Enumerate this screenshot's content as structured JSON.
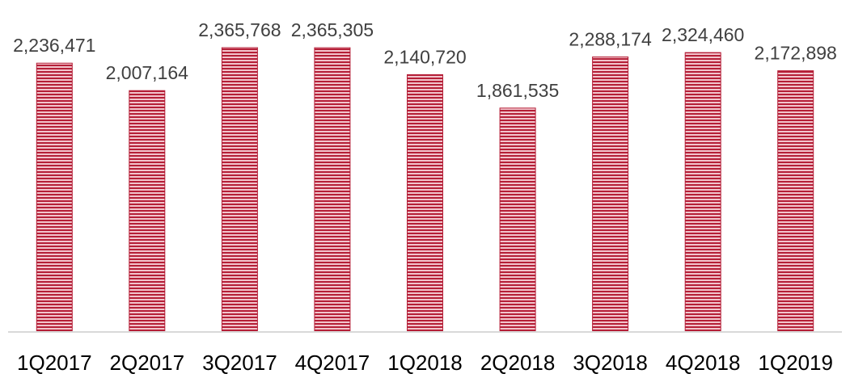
{
  "chart_data": {
    "type": "bar",
    "categories": [
      "1Q2017",
      "2Q2017",
      "3Q2017",
      "4Q2017",
      "1Q2018",
      "2Q2018",
      "3Q2018",
      "4Q2018",
      "1Q2019"
    ],
    "values": [
      2236471,
      2007164,
      2365768,
      2365305,
      2140720,
      1861535,
      2288174,
      2324460,
      2172898
    ],
    "data_labels": [
      "2,236,471",
      "2,007,164",
      "2,365,768",
      "2,365,305",
      "2,140,720",
      "1,861,535",
      "2,288,174",
      "2,324,460",
      "2,172,898"
    ],
    "title": "",
    "xlabel": "",
    "ylabel": "",
    "ylim": [
      0,
      2365768
    ],
    "grid": false,
    "legend": "none",
    "colors": {
      "bar_base": "#b51f37",
      "bar_stripe": "#f2c4cc",
      "axis": "#d9d9d9",
      "label_text": "#404040",
      "tick_text": "#000000"
    }
  }
}
